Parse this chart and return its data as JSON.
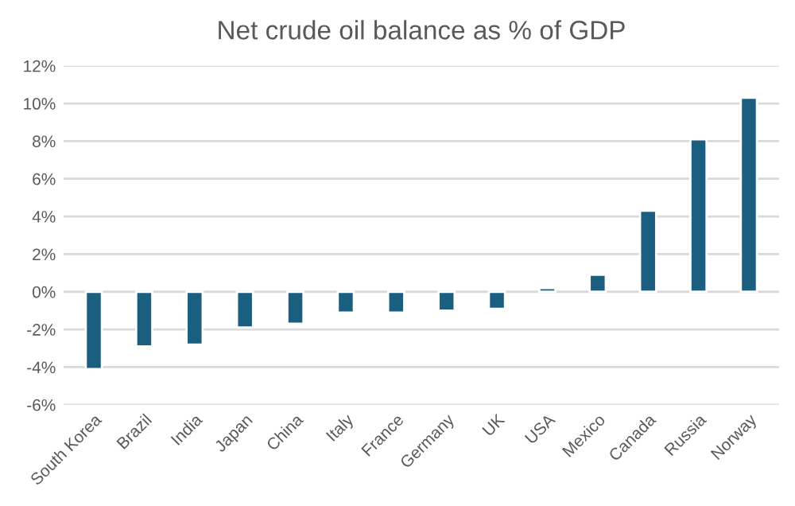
{
  "chart_data": {
    "type": "bar",
    "title": "Net crude oil balance as % of GDP",
    "categories": [
      "South Korea",
      "Brazil",
      "India",
      "Japan",
      "China",
      "Italy",
      "France",
      "Germany",
      "UK",
      "USA",
      "Mexico",
      "Canada",
      "Russia",
      "Norway"
    ],
    "values": [
      -4.1,
      -2.9,
      -2.8,
      -1.9,
      -1.7,
      -1.1,
      -1.1,
      -1.0,
      -0.9,
      0.2,
      0.9,
      4.3,
      8.1,
      10.3
    ],
    "color": "#1a5e80",
    "ylim": [
      -6,
      12
    ],
    "yticks": [
      {
        "value": -6,
        "label": "-6%"
      },
      {
        "value": -4,
        "label": "-4%"
      },
      {
        "value": -2,
        "label": "-2%"
      },
      {
        "value": 0,
        "label": "0%"
      },
      {
        "value": 2,
        "label": "2%"
      },
      {
        "value": 4,
        "label": "4%"
      },
      {
        "value": 6,
        "label": "6%"
      },
      {
        "value": 8,
        "label": "8%"
      },
      {
        "value": 10,
        "label": "10%"
      },
      {
        "value": 12,
        "label": "12%"
      }
    ],
    "grid": "y",
    "legend": false
  }
}
